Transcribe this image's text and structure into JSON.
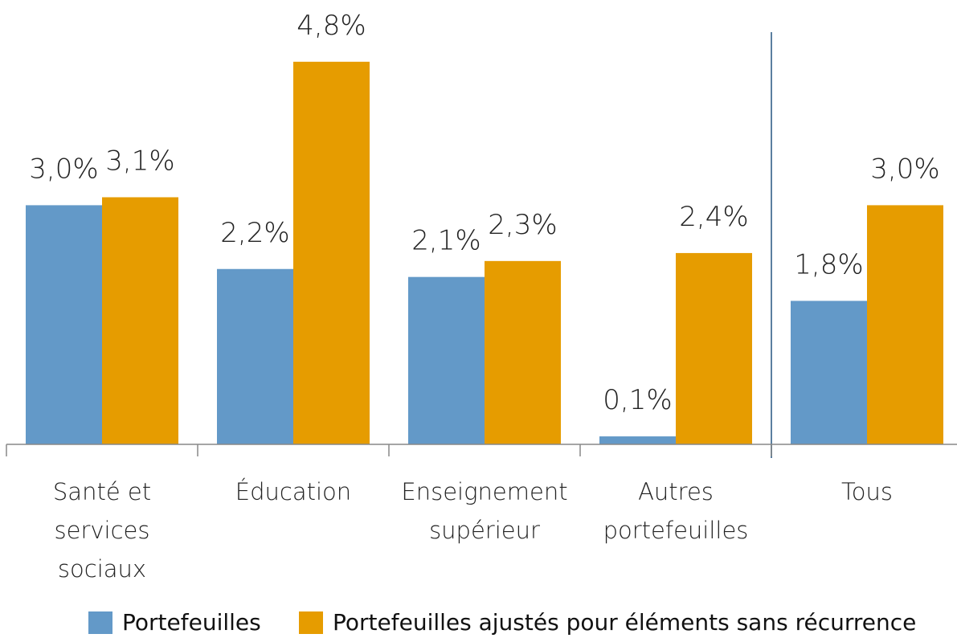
{
  "chart_data": {
    "type": "bar",
    "categories": [
      "Santé et services sociaux",
      "Éducation",
      "Enseignement supérieur",
      "Autres portefeuilles",
      "Tous"
    ],
    "series": [
      {
        "name": "Portefeuilles",
        "color": "#6399c8",
        "values": [
          3.0,
          2.2,
          2.1,
          0.1,
          1.8
        ],
        "value_labels": [
          "3,0%",
          "2,2%",
          "2,1%",
          "0,1%",
          "1,8%"
        ]
      },
      {
        "name": "Portefeuilles ajustés pour éléments sans récurrence",
        "color": "#e69c00",
        "values": [
          3.1,
          4.8,
          2.3,
          2.4,
          3.0
        ],
        "value_labels": [
          "3,1%",
          "4,8%",
          "2,3%",
          "2,4%",
          "3,0%"
        ]
      }
    ],
    "ylim": [
      0,
      5
    ]
  }
}
